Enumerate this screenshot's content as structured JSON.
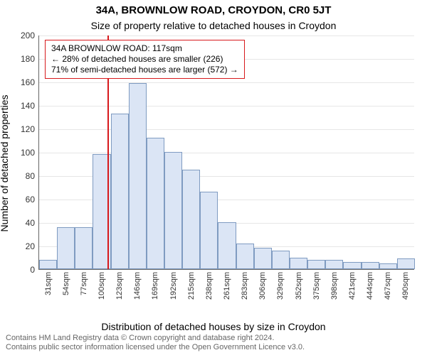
{
  "titles": {
    "main": "34A, BROWNLOW ROAD, CROYDON, CR0 5JT",
    "sub": "Size of property relative to detached houses in Croydon",
    "ylabel": "Number of detached properties",
    "xlabel": "Distribution of detached houses by size in Croydon"
  },
  "attribution": {
    "line1": "Contains HM Land Registry data © Crown copyright and database right 2024.",
    "line2": "Contains public sector information licensed under the Open Government Licence v3.0."
  },
  "chart": {
    "type": "histogram",
    "ylim": [
      0,
      200
    ],
    "ytick_step": 20,
    "bar_fill": "#dbe5f5",
    "bar_stroke": "#7f9bc1",
    "bar_stroke_width": 1,
    "grid_color": "#e6e6e6",
    "marker_line_color": "#d7191c",
    "marker_line_width": 2,
    "marker_position_category_index": 3.8,
    "categories": [
      "31sqm",
      "54sqm",
      "77sqm",
      "100sqm",
      "123sqm",
      "146sqm",
      "169sqm",
      "192sqm",
      "215sqm",
      "238sqm",
      "261sqm",
      "283sqm",
      "306sqm",
      "329sqm",
      "352sqm",
      "375sqm",
      "398sqm",
      "421sqm",
      "444sqm",
      "467sqm",
      "490sqm"
    ],
    "values": [
      8,
      36,
      36,
      98,
      133,
      159,
      112,
      100,
      85,
      66,
      40,
      22,
      18,
      16,
      10,
      8,
      8,
      6,
      6,
      5,
      9
    ]
  },
  "annotation": {
    "line1": "34A BROWNLOW ROAD: 117sqm",
    "line2": "← 28% of detached houses are smaller (226)",
    "line3": "71% of semi-detached houses are larger (572) →",
    "border_color": "#d7191c",
    "font_size": 12
  },
  "fonts": {
    "title_main_size": 15,
    "title_sub_size": 14,
    "axis_label_size": 14,
    "attrib_size": 11
  }
}
